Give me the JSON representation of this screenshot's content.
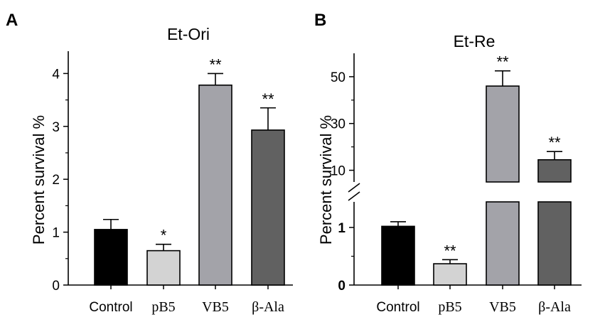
{
  "panels": [
    {
      "letter": "A",
      "chart_data": {
        "type": "bar",
        "title": "Et-Ori",
        "ylabel": "Percent survival %",
        "xlabel": "",
        "categories": [
          "Control",
          "pB5",
          "VB5",
          "β-Ala"
        ],
        "values": [
          1.05,
          0.65,
          3.78,
          2.93
        ],
        "errors": [
          0.19,
          0.12,
          0.22,
          0.42
        ],
        "significance": [
          "",
          "*",
          "**",
          "**"
        ],
        "ylim": [
          0,
          4.5
        ],
        "yticks": [
          "0",
          "1",
          "2",
          "3",
          "4"
        ],
        "colors": [
          "#000000",
          "#d3d3d3",
          "#a3a3a9",
          "#616161"
        ],
        "grid": false
      }
    },
    {
      "letter": "B",
      "chart_data": {
        "type": "bar",
        "title": "Et-Re",
        "ylabel": "Percent survival %",
        "xlabel": "",
        "categories": [
          "Control",
          "pB5",
          "VB5",
          "β-Ala"
        ],
        "values": [
          1.02,
          0.37,
          46,
          14.5
        ],
        "errors": [
          0.08,
          0.07,
          6.5,
          3.5
        ],
        "significance": [
          "",
          "**",
          "**",
          "**"
        ],
        "axis_break": {
          "lower": [
            0,
            1.5
          ],
          "upper": [
            5,
            60
          ]
        },
        "yticks_lower": [
          "0",
          "1"
        ],
        "yticks_upper": [
          "10",
          "30",
          "50"
        ],
        "colors": [
          "#000000",
          "#d3d3d3",
          "#a3a3a9",
          "#616161"
        ],
        "grid": false
      }
    }
  ]
}
